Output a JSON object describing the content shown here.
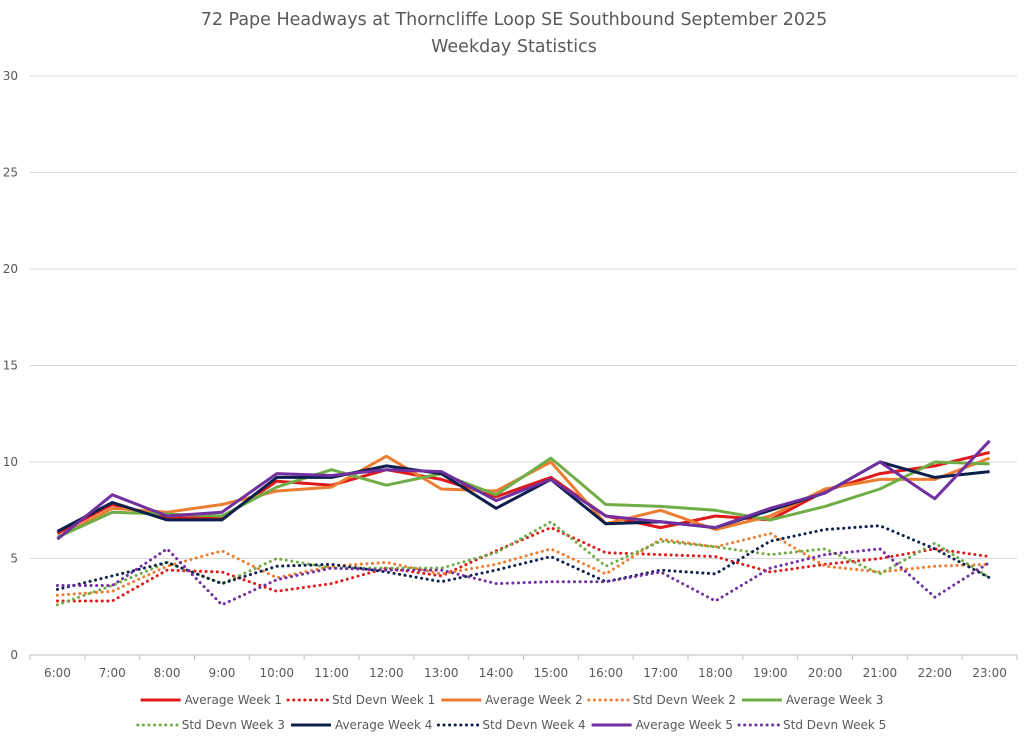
{
  "chart_data": {
    "type": "line",
    "title": "72 Pape Headways at Thorncliffe Loop SE Southbound September 2025",
    "subtitle": "Weekday Statistics",
    "xlabel": "",
    "ylabel": "",
    "categories": [
      "6:00",
      "7:00",
      "8:00",
      "9:00",
      "10:00",
      "11:00",
      "12:00",
      "13:00",
      "14:00",
      "15:00",
      "16:00",
      "17:00",
      "18:00",
      "19:00",
      "20:00",
      "21:00",
      "22:00",
      "23:00"
    ],
    "ylim": [
      0,
      30
    ],
    "yticks": [
      0,
      5,
      10,
      15,
      20,
      25,
      30
    ],
    "grid": true,
    "legend_position": "bottom",
    "series": [
      {
        "name": "Average Week 1",
        "color": "#e01a1a",
        "dash": "solid",
        "values": [
          6.3,
          7.8,
          7.1,
          7.1,
          9.0,
          8.8,
          9.6,
          9.1,
          8.2,
          9.2,
          7.2,
          6.6,
          7.2,
          7.0,
          8.5,
          9.4,
          9.8,
          10.5
        ]
      },
      {
        "name": "Std Devn Week 1",
        "color": "#e01a1a",
        "dash": "dotted",
        "values": [
          2.8,
          2.8,
          4.4,
          4.3,
          3.3,
          3.7,
          4.5,
          4.1,
          5.4,
          6.6,
          5.3,
          5.2,
          5.1,
          4.3,
          4.7,
          5.0,
          5.5,
          5.1
        ]
      },
      {
        "name": "Average Week 2",
        "color": "#ed7d31",
        "dash": "solid",
        "values": [
          6.1,
          7.6,
          7.4,
          7.8,
          8.5,
          8.7,
          10.3,
          8.6,
          8.5,
          10.0,
          6.8,
          7.5,
          6.5,
          7.2,
          8.6,
          9.1,
          9.1,
          10.2
        ]
      },
      {
        "name": "Std Devn Week 2",
        "color": "#ed7d31",
        "dash": "dotted",
        "values": [
          3.1,
          3.3,
          4.6,
          5.4,
          4.0,
          4.6,
          4.8,
          4.2,
          4.7,
          5.5,
          4.2,
          6.0,
          5.6,
          6.3,
          4.6,
          4.3,
          4.6,
          4.7
        ]
      },
      {
        "name": "Average Week 3",
        "color": "#70ad47",
        "dash": "solid",
        "values": [
          6.1,
          7.4,
          7.3,
          7.2,
          8.7,
          9.6,
          8.8,
          9.4,
          8.3,
          10.2,
          7.8,
          7.7,
          7.5,
          7.0,
          7.7,
          8.6,
          10.0,
          9.9
        ]
      },
      {
        "name": "Std Devn Week 3",
        "color": "#70ad47",
        "dash": "dotted",
        "values": [
          2.6,
          3.6,
          4.8,
          3.7,
          5.0,
          4.5,
          4.5,
          4.5,
          5.3,
          6.9,
          4.6,
          5.9,
          5.6,
          5.2,
          5.5,
          4.2,
          5.8,
          4.0
        ]
      },
      {
        "name": "Average Week 4",
        "color": "#0c1f4d",
        "dash": "solid",
        "values": [
          6.4,
          7.9,
          7.0,
          7.0,
          9.2,
          9.2,
          9.8,
          9.4,
          7.6,
          9.1,
          6.8,
          6.9,
          6.6,
          7.5,
          8.4,
          10.0,
          9.2,
          9.5
        ]
      },
      {
        "name": "Std Devn Week 4",
        "color": "#0c1f4d",
        "dash": "dotted",
        "values": [
          3.4,
          4.1,
          4.8,
          3.7,
          4.6,
          4.7,
          4.3,
          3.8,
          4.4,
          5.1,
          3.8,
          4.4,
          4.2,
          5.9,
          6.5,
          6.7,
          5.5,
          4.0
        ]
      },
      {
        "name": "Average Week 5",
        "color": "#7030a0",
        "dash": "solid",
        "values": [
          6.0,
          8.3,
          7.2,
          7.4,
          9.4,
          9.3,
          9.6,
          9.5,
          8.0,
          9.1,
          7.2,
          6.9,
          6.6,
          7.6,
          8.4,
          10.0,
          8.1,
          11.1
        ]
      },
      {
        "name": "Std Devn Week 5",
        "color": "#7030a0",
        "dash": "dotted",
        "values": [
          3.6,
          3.6,
          5.5,
          2.6,
          3.9,
          4.5,
          4.4,
          4.4,
          3.7,
          3.8,
          3.8,
          4.3,
          2.8,
          4.5,
          5.2,
          5.5,
          3.0,
          4.8
        ]
      }
    ]
  }
}
